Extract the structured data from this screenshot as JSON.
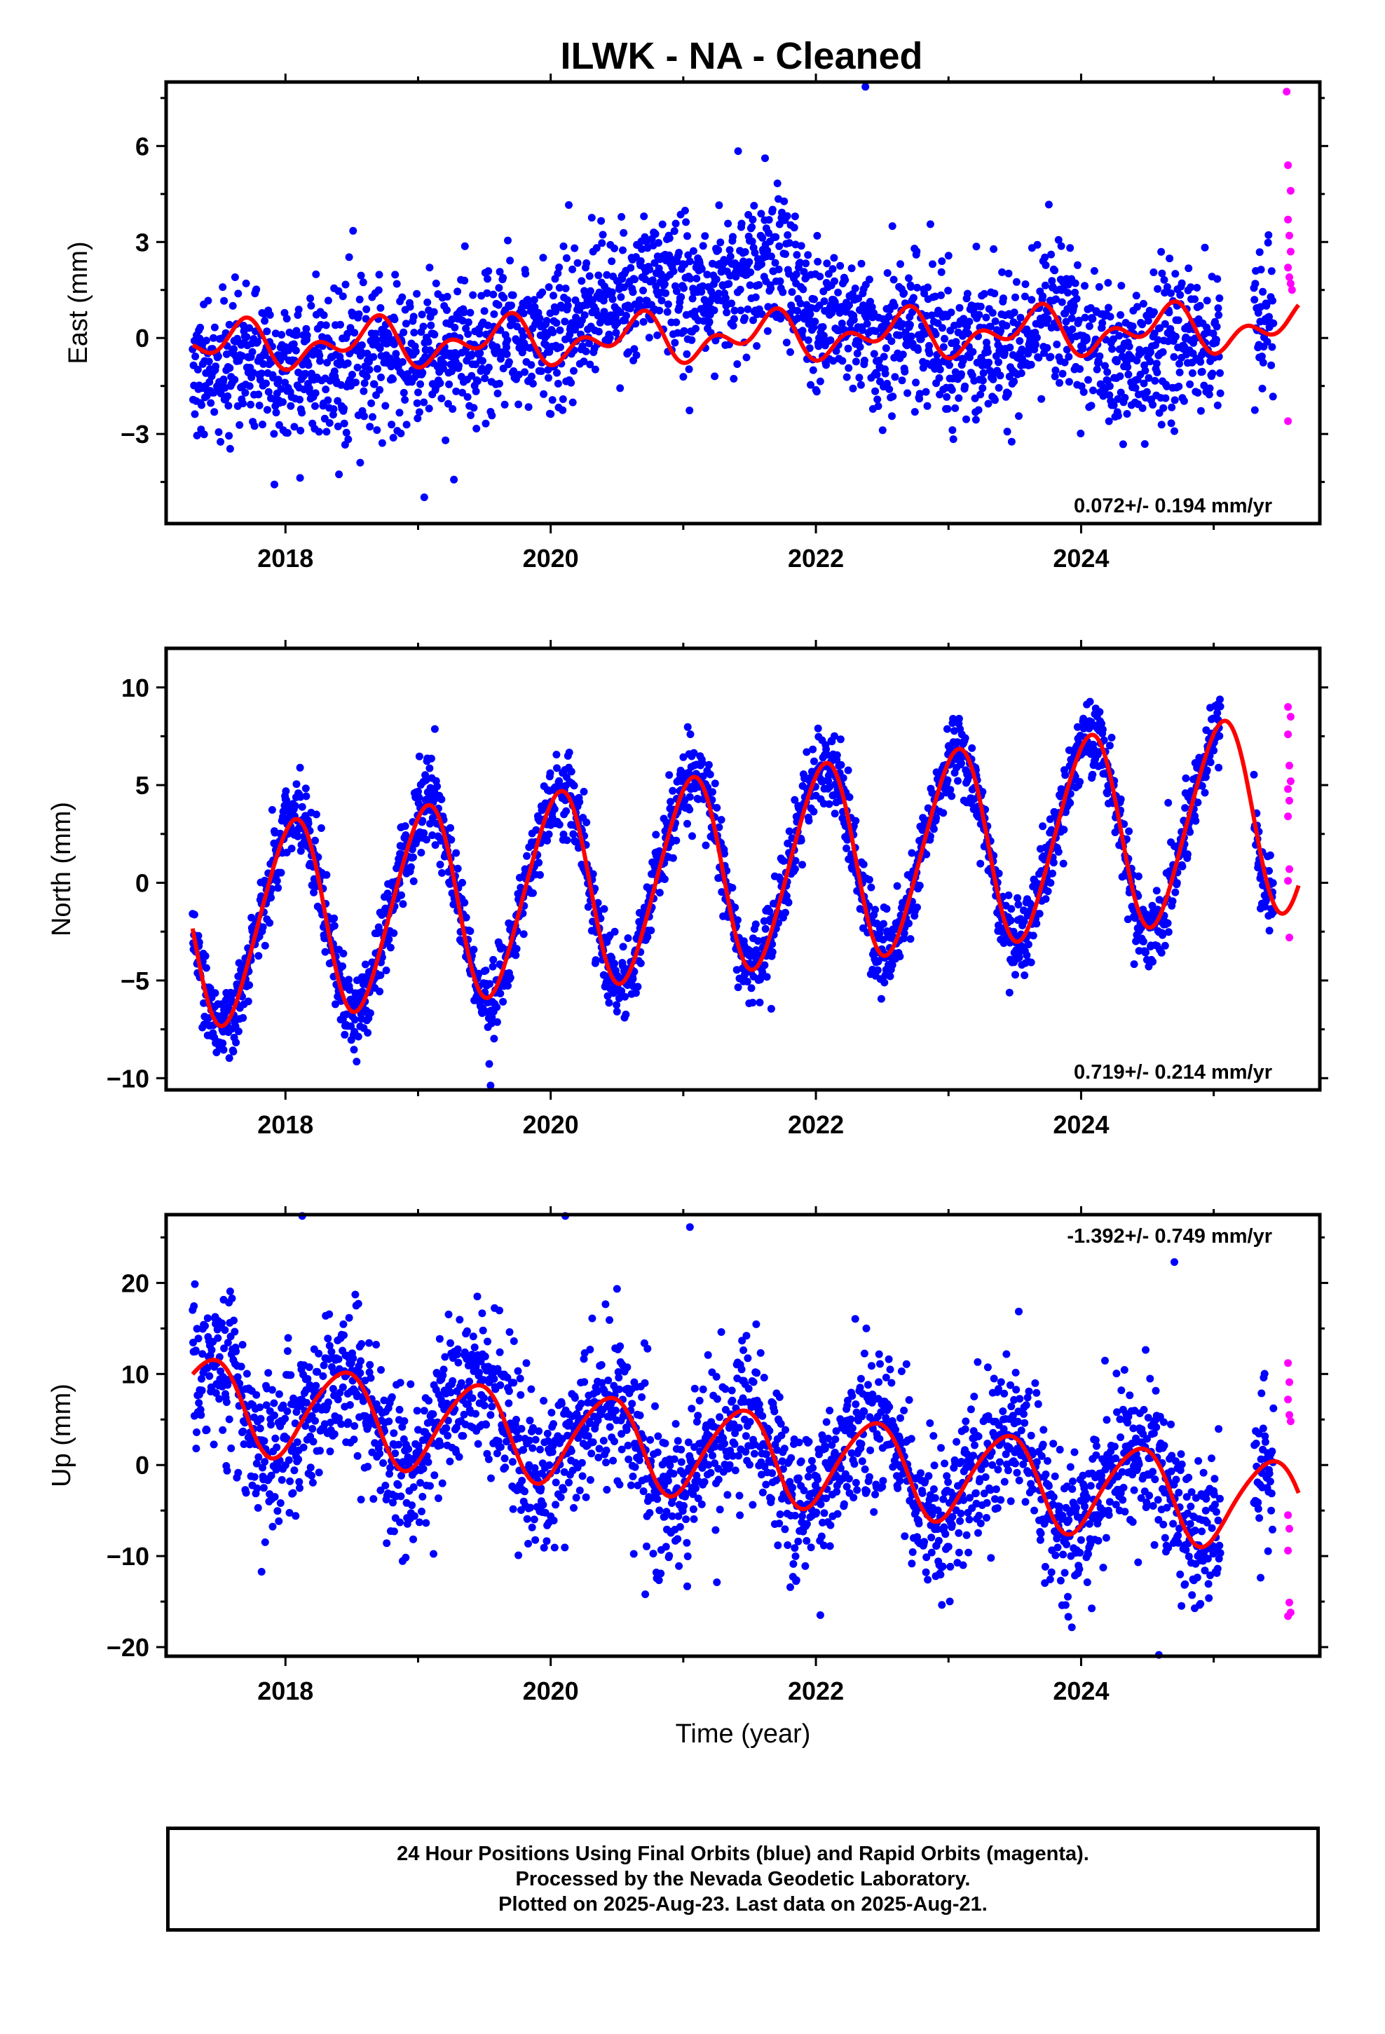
{
  "title": "ILWK  - NA - Cleaned",
  "footer": {
    "line1": "24 Hour Positions Using Final Orbits (blue) and Rapid Orbits (magenta).",
    "line2": "Processed by the Nevada Geodetic Laboratory.",
    "line3": "Plotted on 2025-Aug-23. Last data on 2025-Aug-21."
  },
  "colors": {
    "final": "#0000ff",
    "rapid": "#ff00ff",
    "model": "#ff0000"
  },
  "chart_data": [
    {
      "type": "scatter",
      "ylabel": "East (mm)",
      "xlabel": "",
      "xlim": [
        2017.1,
        2025.8
      ],
      "ylim": [
        -5.8,
        8.0
      ],
      "xticks": [
        2018,
        2020,
        2022,
        2024
      ],
      "xtick_labels": [
        "2018",
        "2020",
        "2022",
        "2024"
      ],
      "yticks": [
        -3,
        0,
        3,
        6
      ],
      "ytick_labels": [
        "−3",
        "0",
        "3",
        "6"
      ],
      "rate": "0.072+/- 0.194 mm/yr",
      "rate_position": "bottom-right",
      "data_start": 2017.3,
      "final_end": 2025.45,
      "rapid_start": 2025.53,
      "data_end": 2025.64,
      "series": [
        {
          "name": "Final Orbits",
          "trend": [
            [
              2017.3,
              -0.9
            ],
            [
              2018.3,
              -0.8
            ],
            [
              2019.3,
              -0.4
            ],
            [
              2020.0,
              0.5
            ],
            [
              2020.9,
              1.8
            ],
            [
              2021.3,
              1.4
            ],
            [
              2021.7,
              2.3
            ],
            [
              2022.0,
              0.8
            ],
            [
              2022.5,
              -0.3
            ],
            [
              2023.0,
              -0.1
            ],
            [
              2023.5,
              -0.4
            ],
            [
              2023.8,
              0.9
            ],
            [
              2024.2,
              -0.8
            ],
            [
              2024.6,
              -0.5
            ],
            [
              2025.0,
              -0.4
            ],
            [
              2025.4,
              1.0
            ]
          ],
          "noise": 1.1
        },
        {
          "name": "Rapid Orbits",
          "points": [
            [
              2025.55,
              7.7
            ],
            [
              2025.56,
              5.4
            ],
            [
              2025.58,
              4.6
            ],
            [
              2025.56,
              3.7
            ],
            [
              2025.57,
              3.2
            ],
            [
              2025.58,
              2.7
            ],
            [
              2025.56,
              2.2
            ],
            [
              2025.57,
              1.9
            ],
            [
              2025.58,
              1.7
            ],
            [
              2025.59,
              1.5
            ],
            [
              2025.56,
              -2.6
            ]
          ]
        }
      ],
      "model": {
        "name": "Model fit",
        "intercept_at_2021": 0.0,
        "rate_mm_per_yr": 0.072,
        "annual": {
          "amp": 0.5,
          "phase": 3.9
        },
        "semiannual": {
          "amp": 0.45,
          "phase": -1.3
        }
      }
    },
    {
      "type": "scatter",
      "ylabel": "North (mm)",
      "xlabel": "",
      "xlim": [
        2017.1,
        2025.8
      ],
      "ylim": [
        -10.6,
        12.0
      ],
      "xticks": [
        2018,
        2020,
        2022,
        2024
      ],
      "xtick_labels": [
        "2018",
        "2020",
        "2022",
        "2024"
      ],
      "yticks": [
        -10,
        -5,
        0,
        5,
        10
      ],
      "ytick_labels": [
        "−10",
        "−5",
        "0",
        "5",
        "10"
      ],
      "rate": "0.719+/- 0.214 mm/yr",
      "rate_position": "bottom-right",
      "data_start": 2017.3,
      "final_end": 2025.45,
      "rapid_start": 2025.53,
      "data_end": 2025.64,
      "series": [
        {
          "name": "Final Orbits",
          "trend": [],
          "noise": 1.0,
          "follows_model": true
        },
        {
          "name": "Rapid Orbits",
          "points": [
            [
              2025.56,
              9.0
            ],
            [
              2025.58,
              8.5
            ],
            [
              2025.56,
              7.6
            ],
            [
              2025.57,
              6.0
            ],
            [
              2025.58,
              5.2
            ],
            [
              2025.56,
              4.8
            ],
            [
              2025.57,
              4.2
            ],
            [
              2025.56,
              3.4
            ],
            [
              2025.57,
              0.7
            ],
            [
              2025.56,
              0.1
            ],
            [
              2025.57,
              -2.8
            ]
          ]
        }
      ],
      "model": {
        "name": "Model fit",
        "intercept_at_2021": 0.3,
        "rate_mm_per_yr": 0.719,
        "annual": {
          "amp": 5.0,
          "phase": 1.26
        },
        "semiannual": {
          "amp": 0.5,
          "phase": -0.7
        }
      }
    },
    {
      "type": "scatter",
      "ylabel": "Up (mm)",
      "xlabel": "Time (year)",
      "xlim": [
        2017.1,
        2025.8
      ],
      "ylim": [
        -21.0,
        27.5
      ],
      "xticks": [
        2018,
        2020,
        2022,
        2024
      ],
      "xtick_labels": [
        "2018",
        "2020",
        "2022",
        "2024"
      ],
      "yticks": [
        -20,
        -10,
        0,
        10,
        20
      ],
      "ytick_labels": [
        "−20",
        "−10",
        "0",
        "10",
        "20"
      ],
      "rate": "-1.392+/- 0.749 mm/yr",
      "rate_position": "top-right",
      "data_start": 2017.3,
      "final_end": 2025.45,
      "rapid_start": 2025.53,
      "data_end": 2025.64,
      "series": [
        {
          "name": "Final Orbits",
          "trend": [],
          "noise": 4.2,
          "follows_model": true
        },
        {
          "name": "Rapid Orbits",
          "points": [
            [
              2025.56,
              11.2
            ],
            [
              2025.57,
              9.1
            ],
            [
              2025.56,
              7.2
            ],
            [
              2025.57,
              5.5
            ],
            [
              2025.58,
              4.8
            ],
            [
              2025.56,
              -5.5
            ],
            [
              2025.57,
              -7.0
            ],
            [
              2025.56,
              -9.4
            ],
            [
              2025.57,
              -15.1
            ],
            [
              2025.58,
              -16.2
            ],
            [
              2025.56,
              -16.6
            ]
          ]
        }
      ],
      "model": {
        "name": "Model fit",
        "intercept_at_2021": 1.8,
        "rate_mm_per_yr": -1.392,
        "annual": {
          "amp": 5.0,
          "phase": -1.1
        },
        "semiannual": {
          "amp": 0.6,
          "phase": 0.4
        }
      }
    }
  ]
}
